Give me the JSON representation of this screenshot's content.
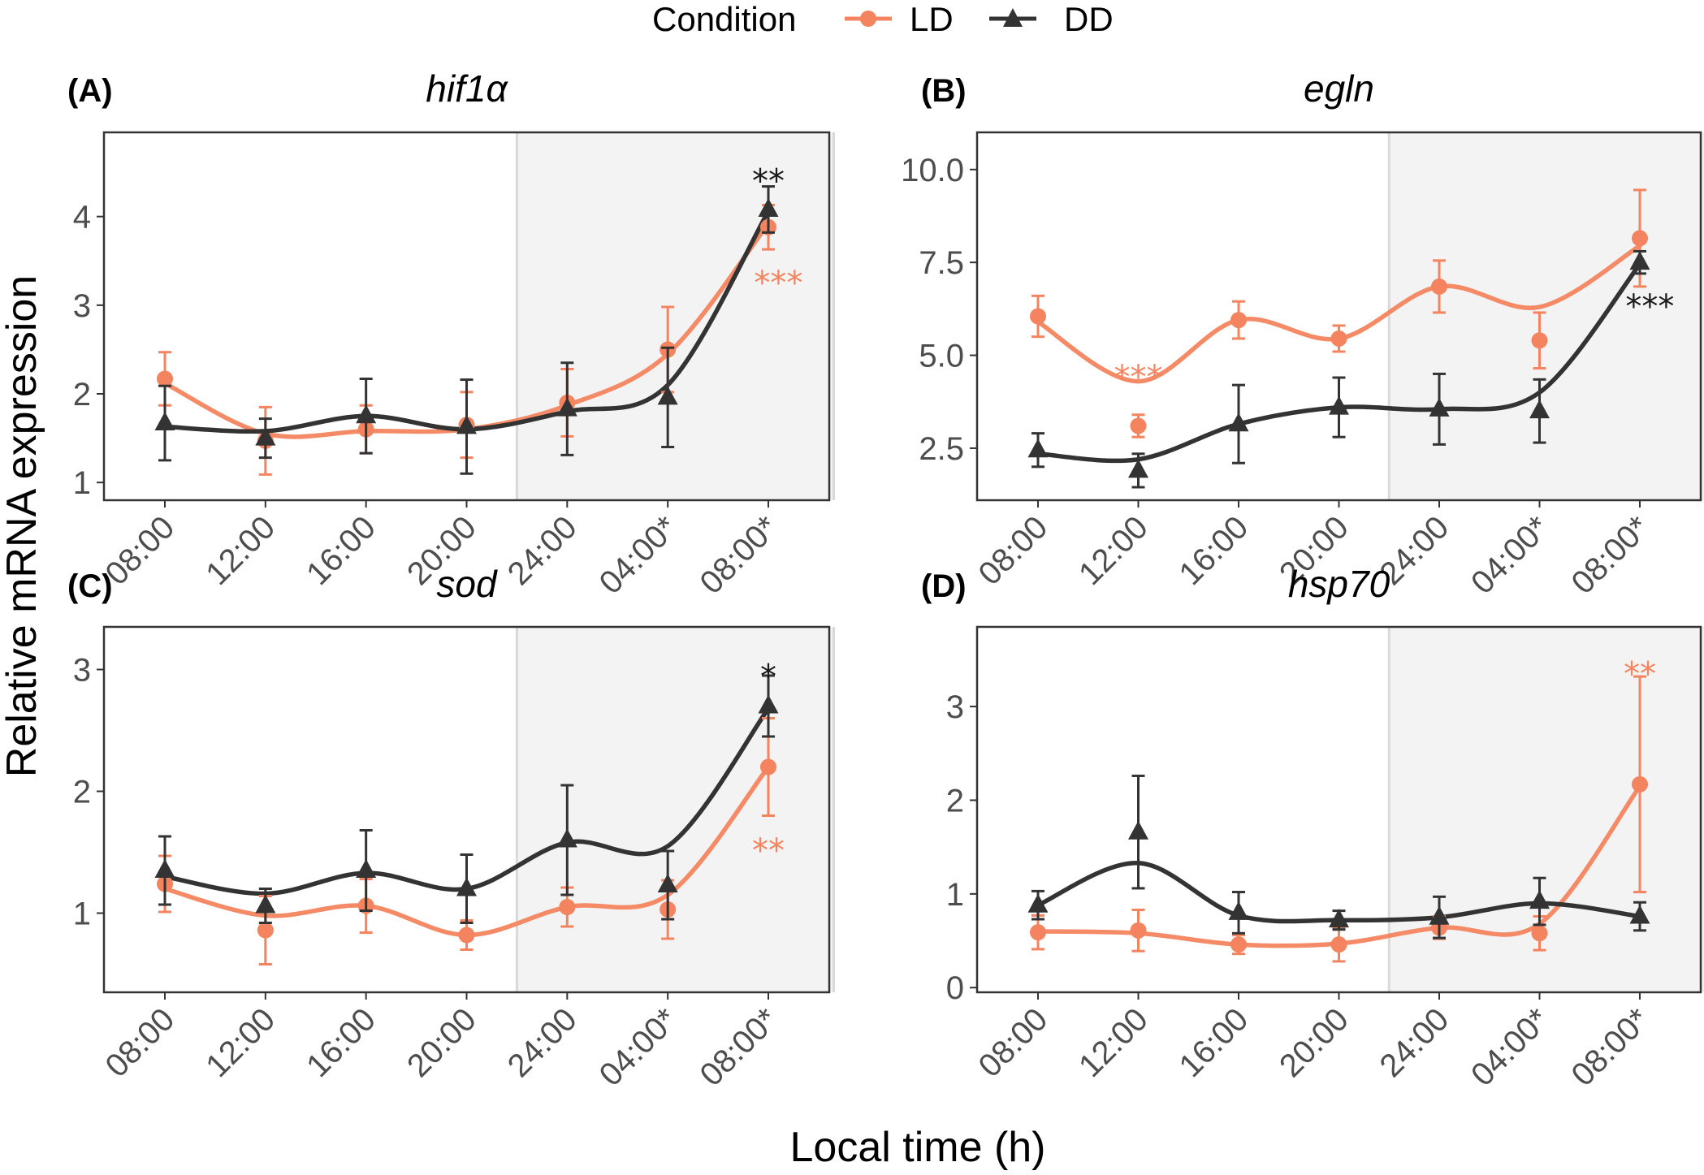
{
  "legend": {
    "title": "Condition",
    "entries": [
      {
        "label": "LD",
        "color": "#F4845F",
        "shape": "circle"
      },
      {
        "label": "DD",
        "color": "#333333",
        "shape": "triangle"
      }
    ]
  },
  "axes": {
    "xlabel": "Local time (h)",
    "ylabel": "Relative mRNA expression"
  },
  "chart_data": [
    {
      "type": "line",
      "letter": "(A)",
      "title": "hif1α",
      "categories": [
        "08:00",
        "12:00",
        "16:00",
        "20:00",
        "24:00",
        "04:00*",
        "08:00*"
      ],
      "ylim": [
        0.8,
        4.95
      ],
      "yticks": [
        1,
        2,
        3,
        4
      ],
      "dark_period": [
        3.5,
        6.65
      ],
      "series": [
        {
          "name": "LD",
          "color": "#F4845F",
          "shape": "circle",
          "values": [
            2.17,
            1.47,
            1.6,
            1.65,
            1.9,
            2.5,
            3.88
          ],
          "errors": [
            0.3,
            0.38,
            0.27,
            0.37,
            0.38,
            0.48,
            0.25
          ],
          "smooth": [
            2.12,
            1.55,
            1.58,
            1.6,
            1.87,
            2.45,
            3.92
          ]
        },
        {
          "name": "DD",
          "color": "#333333",
          "shape": "triangle",
          "values": [
            1.67,
            1.5,
            1.75,
            1.63,
            1.83,
            1.96,
            4.08
          ],
          "errors": [
            0.42,
            0.22,
            0.42,
            0.53,
            0.52,
            0.56,
            0.26
          ],
          "smooth": [
            1.63,
            1.58,
            1.75,
            1.6,
            1.8,
            2.1,
            4.06
          ]
        }
      ],
      "annotations": [
        {
          "text": "**",
          "series": "DD",
          "x": 6,
          "y": 4.48,
          "color": "#1a1a1a"
        },
        {
          "text": "***",
          "series": "LD",
          "x": 6.1,
          "y": 3.33,
          "color": "#F4845F"
        }
      ]
    },
    {
      "type": "line",
      "letter": "(B)",
      "title": "egln",
      "categories": [
        "08:00",
        "12:00",
        "16:00",
        "20:00",
        "24:00",
        "04:00*",
        "08:00*"
      ],
      "ylim": [
        1.1,
        11.0
      ],
      "yticks": [
        2.5,
        5.0,
        7.5,
        10.0
      ],
      "ytick_labels": [
        "2.5",
        "5.0",
        "7.5",
        "10.0"
      ],
      "dark_period": [
        3.5,
        6.65
      ],
      "series": [
        {
          "name": "LD",
          "color": "#F4845F",
          "shape": "circle",
          "values": [
            6.05,
            3.1,
            5.95,
            5.45,
            6.85,
            5.4,
            8.15
          ],
          "errors": [
            0.55,
            0.3,
            0.5,
            0.35,
            0.7,
            0.75,
            1.3
          ],
          "smooth": [
            5.9,
            4.3,
            5.95,
            5.45,
            6.85,
            6.3,
            7.95
          ]
        },
        {
          "name": "DD",
          "color": "#333333",
          "shape": "triangle",
          "values": [
            2.45,
            1.9,
            3.15,
            3.6,
            3.55,
            3.5,
            7.5
          ],
          "errors": [
            0.45,
            0.45,
            1.05,
            0.8,
            0.95,
            0.85,
            0.3
          ],
          "smooth": [
            2.35,
            2.2,
            3.15,
            3.6,
            3.55,
            4.0,
            7.45
          ]
        }
      ],
      "annotations": [
        {
          "text": "***",
          "series": "LD",
          "x": 1,
          "y": 4.6,
          "color": "#F4845F"
        },
        {
          "text": "***",
          "series": "DD",
          "x": 6.1,
          "y": 6.5,
          "color": "#1a1a1a"
        }
      ]
    },
    {
      "type": "line",
      "letter": "(C)",
      "title": "sod",
      "categories": [
        "08:00",
        "12:00",
        "16:00",
        "20:00",
        "24:00",
        "04:00*",
        "08:00*"
      ],
      "ylim": [
        0.35,
        3.35
      ],
      "yticks": [
        1,
        2,
        3
      ],
      "dark_period": [
        3.5,
        6.65
      ],
      "series": [
        {
          "name": "LD",
          "color": "#F4845F",
          "shape": "circle",
          "values": [
            1.24,
            0.86,
            1.06,
            0.82,
            1.05,
            1.03,
            2.2
          ],
          "errors": [
            0.23,
            0.28,
            0.22,
            0.12,
            0.16,
            0.24,
            0.4
          ],
          "smooth": [
            1.2,
            0.98,
            1.06,
            0.82,
            1.05,
            1.15,
            2.2
          ]
        },
        {
          "name": "DD",
          "color": "#333333",
          "shape": "triangle",
          "values": [
            1.35,
            1.06,
            1.35,
            1.2,
            1.6,
            1.23,
            2.7
          ],
          "errors": [
            0.28,
            0.14,
            0.33,
            0.28,
            0.45,
            0.28,
            0.25
          ],
          "smooth": [
            1.3,
            1.16,
            1.33,
            1.2,
            1.58,
            1.55,
            2.68
          ]
        }
      ],
      "annotations": [
        {
          "text": "*",
          "series": "DD",
          "x": 6,
          "y": 3.0,
          "color": "#1a1a1a"
        },
        {
          "text": "**",
          "series": "LD",
          "x": 6,
          "y": 1.57,
          "color": "#F4845F"
        }
      ]
    },
    {
      "type": "line",
      "letter": "(D)",
      "title": "hsp70",
      "categories": [
        "08:00",
        "12:00",
        "16:00",
        "20:00",
        "24:00",
        "04:00*",
        "08:00*"
      ],
      "ylim": [
        -0.05,
        3.85
      ],
      "yticks": [
        0,
        1,
        2,
        3
      ],
      "dark_period": [
        3.5,
        6.65
      ],
      "series": [
        {
          "name": "LD",
          "color": "#F4845F",
          "shape": "circle",
          "values": [
            0.59,
            0.61,
            0.46,
            0.46,
            0.64,
            0.58,
            2.17
          ],
          "errors": [
            0.18,
            0.22,
            0.1,
            0.18,
            0.12,
            0.18,
            1.15
          ],
          "smooth": [
            0.6,
            0.58,
            0.46,
            0.47,
            0.64,
            0.68,
            2.15
          ]
        },
        {
          "name": "DD",
          "color": "#333333",
          "shape": "triangle",
          "values": [
            0.88,
            1.66,
            0.8,
            0.72,
            0.75,
            0.92,
            0.76
          ],
          "errors": [
            0.15,
            0.6,
            0.22,
            0.1,
            0.22,
            0.25,
            0.15
          ],
          "smooth": [
            0.88,
            1.33,
            0.77,
            0.72,
            0.75,
            0.9,
            0.76
          ]
        }
      ],
      "annotations": [
        {
          "text": "**",
          "series": "LD",
          "x": 6,
          "y": 3.42,
          "color": "#F4845F"
        }
      ]
    }
  ]
}
